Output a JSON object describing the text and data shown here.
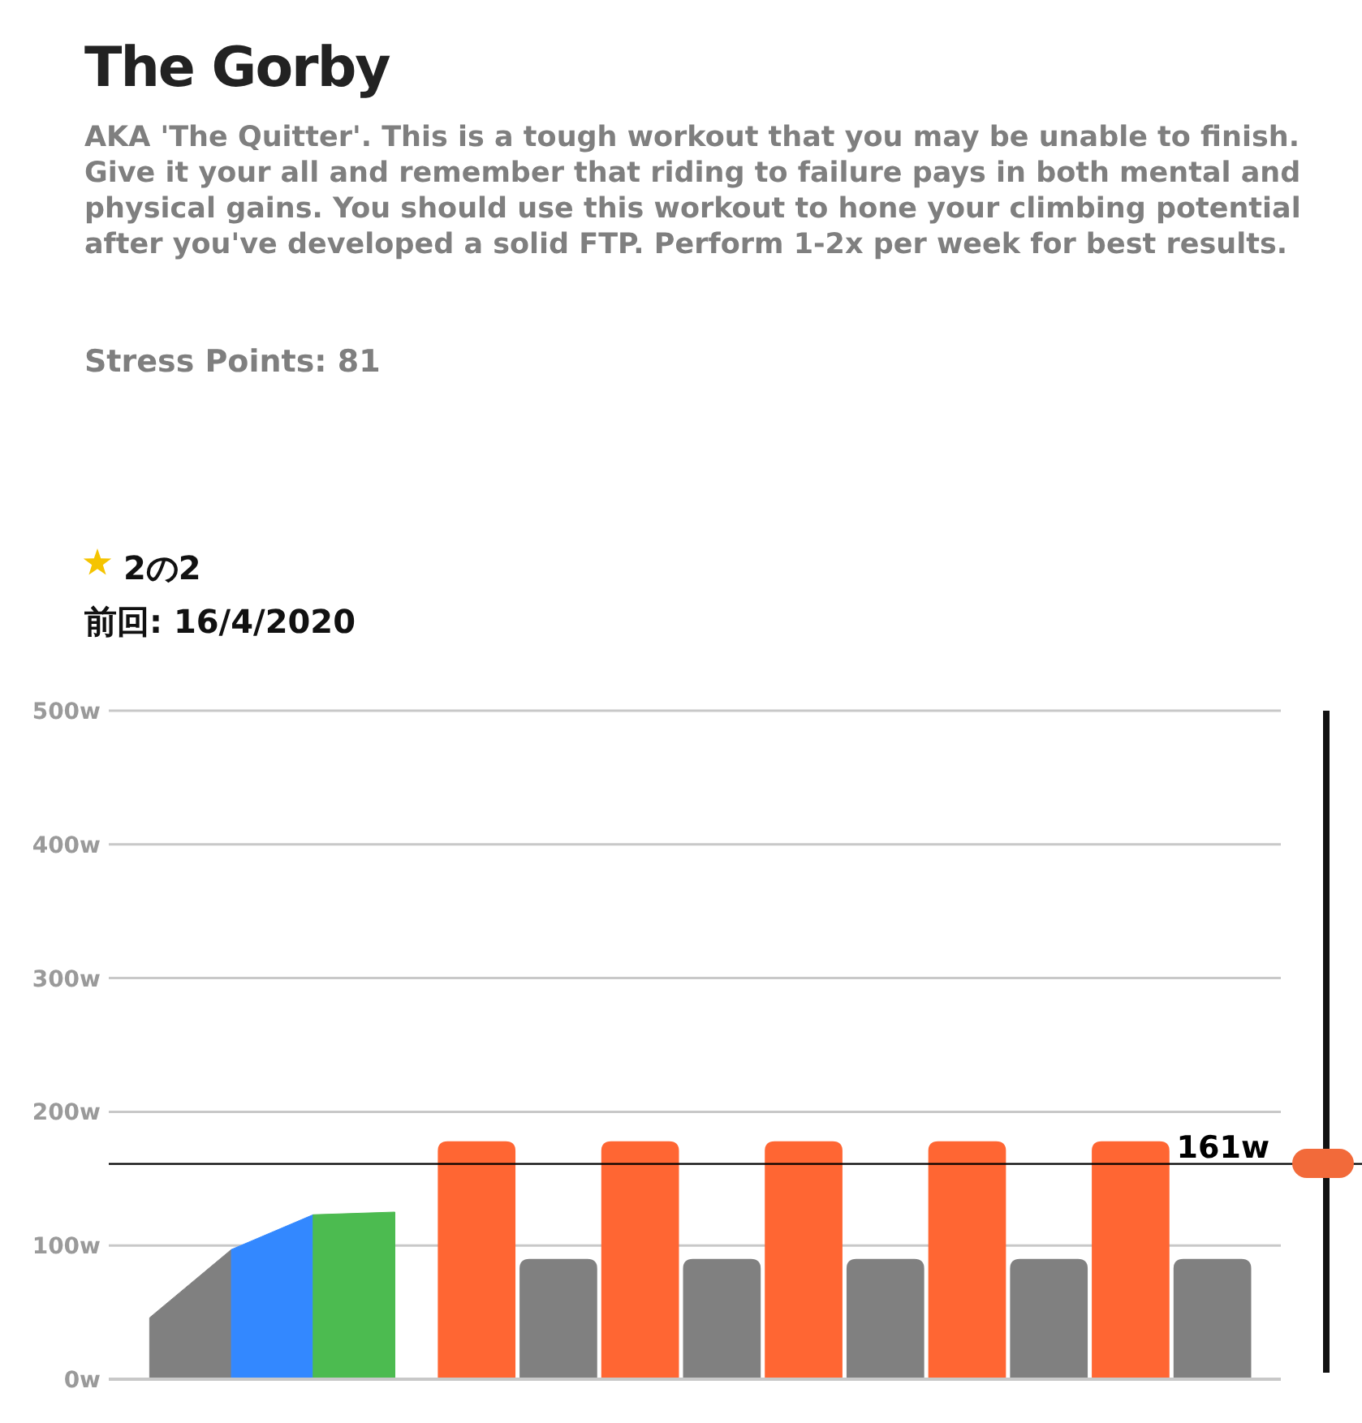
{
  "chart_data": {
    "type": "bar",
    "title": "The Gorby",
    "subtitle": "AKA 'The Quitter'. This is a tough workout that you may be unable to finish. Give it your all and remember that riding to failure pays in both mental and physical gains.   You should use this workout to hone your climbing potential after you've developed a solid FTP.   Perform 1-2x per week for best results.",
    "annotations": [
      "Stress Points: 81",
      "2の2",
      "前回: 16/4/2020"
    ],
    "categories": [
      null,
      null,
      null,
      null,
      null,
      null,
      null,
      null,
      null,
      null,
      null,
      null,
      null,
      null
    ],
    "ylim": [
      0,
      500
    ],
    "yticks": [
      {
        "value": 0,
        "label": "0w"
      },
      {
        "value": 100,
        "label": "100w"
      },
      {
        "value": 200,
        "label": "200w"
      },
      {
        "value": 300,
        "label": "300w"
      },
      {
        "value": 400,
        "label": "400w"
      },
      {
        "value": 500,
        "label": "500w"
      }
    ],
    "grid": "y",
    "ref_lines": [
      {
        "axis": "y",
        "value": 161,
        "label": "161w",
        "color": "#000000"
      }
    ],
    "series": [
      {
        "type": "area",
        "color": "#808080",
        "values": [
          46,
          97,
          null,
          null,
          null,
          null,
          null,
          null,
          null,
          null,
          null,
          null,
          null,
          null
        ]
      },
      {
        "type": "area",
        "color": "#3388ff",
        "values": [
          null,
          97,
          123,
          null,
          null,
          null,
          null,
          null,
          null,
          null,
          null,
          null,
          null,
          null
        ]
      },
      {
        "type": "area",
        "color": "#4cbb50",
        "values": [
          null,
          null,
          123,
          125,
          null,
          null,
          null,
          null,
          null,
          null,
          null,
          null,
          null,
          null
        ]
      },
      {
        "colors": [
          null,
          null,
          null,
          null,
          "#ff6633",
          "#808080",
          "#ff6633",
          "#808080",
          "#ff6633",
          "#808080",
          "#ff6633",
          "#808080",
          "#ff6633",
          "#808080"
        ],
        "values": [
          null,
          null,
          null,
          null,
          178,
          90,
          178,
          90,
          178,
          90,
          178,
          90,
          178,
          90
        ]
      }
    ]
  }
}
